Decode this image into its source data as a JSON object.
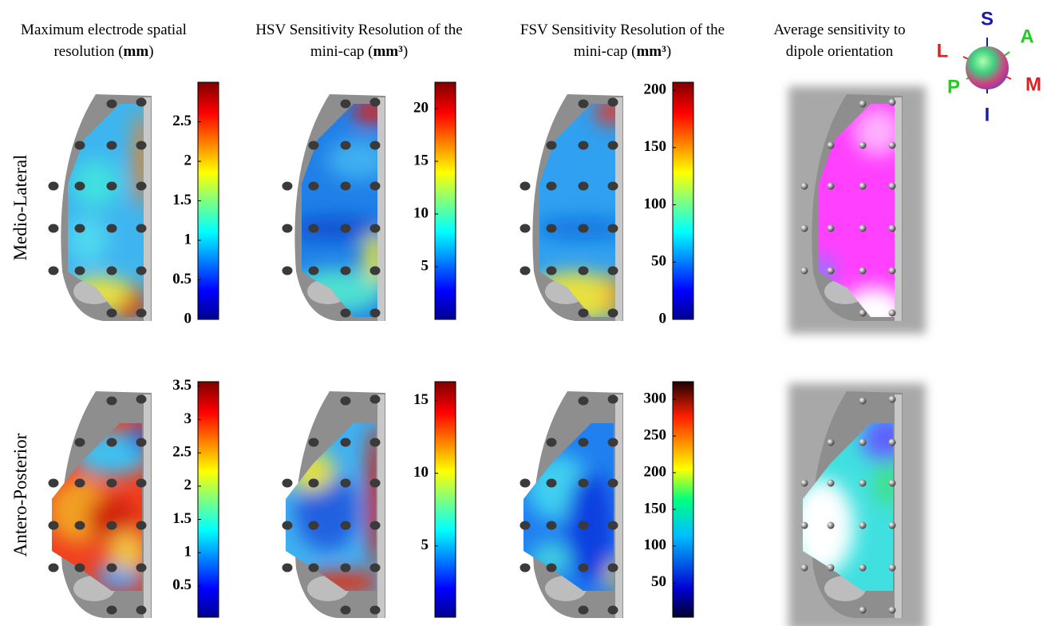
{
  "columns": [
    {
      "title": [
        [
          {
            "text": "Maximum electrode spatial"
          }
        ],
        [
          {
            "text": "resolution ("
          },
          {
            "text": "mm",
            "bold": true
          },
          {
            "text": ")"
          }
        ]
      ]
    },
    {
      "title": [
        [
          {
            "text": "HSV Sensitivity Resolution of the"
          }
        ],
        [
          {
            "text": "mini-cap ("
          },
          {
            "text": "mm³",
            "bold": true
          },
          {
            "text": ")"
          }
        ]
      ]
    },
    {
      "title": [
        [
          {
            "text": "FSV Sensitivity Resolution of the"
          }
        ],
        [
          {
            "text": "mini-cap ("
          },
          {
            "text": "mm³",
            "bold": true
          },
          {
            "text": ")"
          }
        ]
      ]
    },
    {
      "title": [
        [
          {
            "text": "Average sensitivity to"
          }
        ],
        [
          {
            "text": "dipole orientation"
          }
        ]
      ]
    }
  ],
  "rows": [
    {
      "label": "Medio-Lateral",
      "colorbars": [
        {
          "lim": [
            0,
            3
          ],
          "ticks": [
            0,
            0.5,
            1,
            1.5,
            2,
            2.5
          ]
        },
        {
          "lim": [
            0,
            22.5
          ],
          "ticks": [
            5,
            10,
            15,
            20
          ]
        },
        {
          "lim": [
            0,
            207
          ],
          "ticks": [
            0,
            50,
            100,
            150,
            200
          ]
        }
      ]
    },
    {
      "label": "Antero-Posterior",
      "colorbars": [
        {
          "lim": [
            0.03,
            3.57
          ],
          "ticks": [
            0.5,
            1,
            1.5,
            2,
            2.5,
            3,
            3.5
          ]
        },
        {
          "lim": [
            0.1,
            16.3
          ],
          "ticks": [
            5,
            10,
            15
          ]
        },
        {
          "lim": [
            3,
            324
          ],
          "ticks": [
            50,
            100,
            150,
            200,
            250,
            300
          ]
        }
      ]
    }
  ],
  "orientation": {
    "labels": [
      {
        "text": "S",
        "color": "#1a1aa8"
      },
      {
        "text": "A",
        "color": "#22cc22"
      },
      {
        "text": "M",
        "color": "#e02020"
      },
      {
        "text": "I",
        "color": "#1a1aa8"
      },
      {
        "text": "P",
        "color": "#22cc22"
      },
      {
        "text": "L",
        "color": "#e02020"
      }
    ]
  }
}
